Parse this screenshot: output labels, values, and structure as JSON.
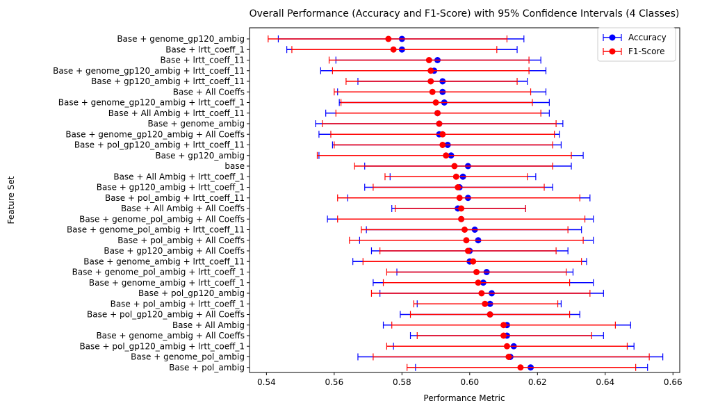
{
  "chart_data": {
    "type": "scatter",
    "title": "Overall Performance (Accuracy and F1-Score) with 95% Confidence Intervals (4 Classes)",
    "xlabel": "Performance Metric",
    "ylabel": "Feature Set",
    "xlim": [
      0.535,
      0.662
    ],
    "xticks": [
      0.54,
      0.56,
      0.58,
      0.6,
      0.62,
      0.64,
      0.66
    ],
    "xtick_labels": [
      "0.54",
      "0.56",
      "0.58",
      "0.60",
      "0.62",
      "0.64",
      "0.66"
    ],
    "grid": false,
    "legend_position": "top-right",
    "categories": [
      "Base + genome_gp120_ambig",
      "Base + lrtt_coeff_1",
      "Base + lrtt_coeff_11",
      "Base + genome_gp120_ambig + lrtt_coeff_11",
      "Base + gp120_ambig + lrtt_coeff_11",
      "Base + All Coeffs",
      "Base + genome_gp120_ambig + lrtt_coeff_1",
      "Base + All Ambig + lrtt_coeff_11",
      "Base + genome_ambig",
      "Base + genome_gp120_ambig + All Coeffs",
      "Base + pol_gp120_ambig + lrtt_coeff_11",
      "Base + gp120_ambig",
      "base",
      "Base + All Ambig + lrtt_coeff_1",
      "Base + gp120_ambig + lrtt_coeff_1",
      "Base + pol_ambig + lrtt_coeff_11",
      "Base + All Ambig + All Coeffs",
      "Base + genome_pol_ambig + All Coeffs",
      "Base + genome_pol_ambig + lrtt_coeff_11",
      "Base + pol_ambig + All Coeffs",
      "Base + gp120_ambig + All Coeffs",
      "Base + genome_ambig + lrtt_coeff_11",
      "Base + genome_pol_ambig + lrtt_coeff_1",
      "Base + genome_ambig + lrtt_coeff_1",
      "Base + pol_gp120_ambig",
      "Base + pol_ambig + lrtt_coeff_1",
      "Base + pol_gp120_ambig + All Coeffs",
      "Base + All Ambig",
      "Base + genome_ambig + All Coeffs",
      "Base + pol_gp120_ambig + lrtt_coeff_1",
      "Base + genome_pol_ambig",
      "Base + pol_ambig"
    ],
    "series": [
      {
        "name": "Accuracy",
        "color": "#0000ff",
        "values": [
          0.58,
          0.58,
          0.5905,
          0.5895,
          0.592,
          0.592,
          0.5925,
          0.5905,
          0.591,
          0.591,
          0.5935,
          0.5945,
          0.5995,
          0.598,
          0.597,
          0.5995,
          0.5965,
          0.5975,
          0.6015,
          0.6025,
          0.6,
          0.6,
          0.605,
          0.604,
          0.6065,
          0.606,
          0.606,
          0.611,
          0.611,
          0.613,
          0.612,
          0.618
        ],
        "lower": [
          0.5435,
          0.546,
          0.5605,
          0.556,
          0.567,
          0.561,
          0.5615,
          0.5575,
          0.5545,
          0.5555,
          0.5595,
          0.5555,
          0.569,
          0.5765,
          0.569,
          0.564,
          0.577,
          0.558,
          0.5695,
          0.5675,
          0.571,
          0.5655,
          0.5785,
          0.5715,
          0.5735,
          0.5845,
          0.5795,
          0.5745,
          0.5825,
          0.5775,
          0.567,
          0.584
        ],
        "upper": [
          0.616,
          0.614,
          0.621,
          0.6225,
          0.617,
          0.6225,
          0.6235,
          0.6235,
          0.6275,
          0.6265,
          0.627,
          0.6335,
          0.63,
          0.6195,
          0.6245,
          0.6355,
          0.6165,
          0.6365,
          0.633,
          0.6365,
          0.629,
          0.6345,
          0.6305,
          0.6365,
          0.6395,
          0.627,
          0.6325,
          0.6475,
          0.6395,
          0.6485,
          0.657,
          0.6525
        ]
      },
      {
        "name": "F1-Score",
        "color": "#ff0000",
        "values": [
          0.576,
          0.5775,
          0.588,
          0.5885,
          0.5885,
          0.589,
          0.59,
          0.5905,
          0.591,
          0.592,
          0.592,
          0.593,
          0.5955,
          0.596,
          0.5965,
          0.597,
          0.5975,
          0.5975,
          0.5985,
          0.599,
          0.5995,
          0.601,
          0.602,
          0.6025,
          0.6035,
          0.6045,
          0.606,
          0.61,
          0.61,
          0.611,
          0.6115,
          0.615
        ],
        "lower": [
          0.5405,
          0.5475,
          0.5585,
          0.5595,
          0.5635,
          0.56,
          0.562,
          0.5605,
          0.5565,
          0.559,
          0.56,
          0.555,
          0.566,
          0.575,
          0.5715,
          0.561,
          0.578,
          0.561,
          0.568,
          0.5645,
          0.5735,
          0.5685,
          0.5755,
          0.5745,
          0.571,
          0.5835,
          0.5825,
          0.577,
          0.5845,
          0.5755,
          0.5715,
          0.5815
        ],
        "upper": [
          0.611,
          0.608,
          0.6175,
          0.6175,
          0.614,
          0.618,
          0.6185,
          0.621,
          0.6255,
          0.625,
          0.6245,
          0.63,
          0.6245,
          0.617,
          0.622,
          0.6325,
          0.6165,
          0.634,
          0.629,
          0.6335,
          0.6255,
          0.633,
          0.6285,
          0.6295,
          0.6355,
          0.626,
          0.6295,
          0.643,
          0.636,
          0.6465,
          0.653,
          0.649
        ]
      }
    ]
  }
}
